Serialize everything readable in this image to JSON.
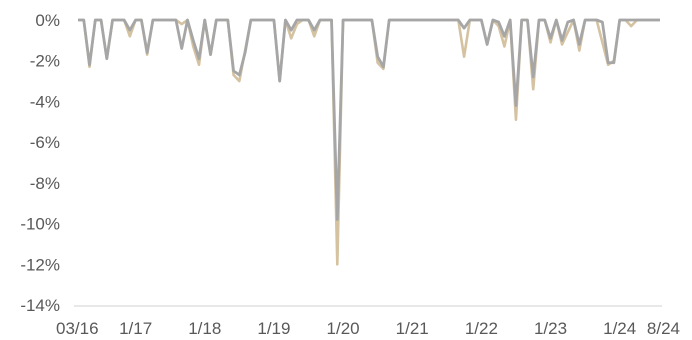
{
  "chart_data": {
    "type": "line",
    "title": "",
    "xlabel": "",
    "ylabel": "",
    "ylim": [
      -14,
      0
    ],
    "y_ticks": [
      0,
      -2,
      -4,
      -6,
      -8,
      -10,
      -12,
      -14
    ],
    "y_tick_labels": [
      "0%",
      "-2%",
      "-4%",
      "-6%",
      "-8%",
      "-10%",
      "-12%",
      "-14%"
    ],
    "x_ticks": [
      "03/16",
      "1/17",
      "1/18",
      "1/19",
      "1/20",
      "1/21",
      "1/22",
      "1/23",
      "1/24",
      "8/24"
    ],
    "grid": false,
    "legend": "none",
    "colors": [
      "#d4c2a0",
      "#a6a6a6"
    ],
    "x": [
      "2016-03",
      "2016-04",
      "2016-05",
      "2016-06",
      "2016-07",
      "2016-08",
      "2016-09",
      "2016-10",
      "2016-11",
      "2016-12",
      "2017-01",
      "2017-02",
      "2017-03",
      "2017-04",
      "2017-05",
      "2017-06",
      "2017-07",
      "2017-08",
      "2017-09",
      "2017-10",
      "2017-11",
      "2017-12",
      "2018-01",
      "2018-02",
      "2018-03",
      "2018-04",
      "2018-05",
      "2018-06",
      "2018-07",
      "2018-08",
      "2018-09",
      "2018-10",
      "2018-11",
      "2018-12",
      "2019-01",
      "2019-02",
      "2019-03",
      "2019-04",
      "2019-05",
      "2019-06",
      "2019-07",
      "2019-08",
      "2019-09",
      "2019-10",
      "2019-11",
      "2019-12",
      "2020-01",
      "2020-02",
      "2020-03",
      "2020-04",
      "2020-05",
      "2020-06",
      "2020-07",
      "2020-08",
      "2020-09",
      "2020-10",
      "2020-11",
      "2020-12",
      "2021-01",
      "2021-02",
      "2021-03",
      "2021-04",
      "2021-05",
      "2021-06",
      "2021-07",
      "2021-08",
      "2021-09",
      "2021-10",
      "2021-11",
      "2021-12",
      "2022-01",
      "2022-02",
      "2022-03",
      "2022-04",
      "2022-05",
      "2022-06",
      "2022-07",
      "2022-08",
      "2022-09",
      "2022-10",
      "2022-11",
      "2022-12",
      "2023-01",
      "2023-02",
      "2023-03",
      "2023-04",
      "2023-05",
      "2023-06",
      "2023-07",
      "2023-08",
      "2023-09",
      "2023-10",
      "2023-11",
      "2023-12",
      "2024-01",
      "2024-02",
      "2024-03",
      "2024-04",
      "2024-05",
      "2024-06",
      "2024-07",
      "2024-08"
    ],
    "series": [
      {
        "values": [
          0,
          0,
          -2.3,
          0,
          0,
          -1.9,
          0,
          0,
          0,
          -0.8,
          0,
          0,
          -1.7,
          0,
          0,
          0,
          0,
          0,
          -0.2,
          0,
          -1.3,
          -2.2,
          0,
          -1.7,
          0,
          0,
          0,
          -2.7,
          -3.0,
          -1.5,
          0,
          0,
          0,
          0,
          0,
          -3.0,
          0,
          -0.9,
          -0.2,
          0,
          0,
          -0.8,
          0,
          0,
          0,
          -12.0,
          0,
          0,
          0,
          0,
          0,
          0,
          -2.1,
          -2.4,
          0,
          0,
          0,
          0,
          0,
          0,
          0,
          0,
          0,
          0,
          0,
          0,
          0,
          -1.8,
          0,
          0,
          0,
          -1.2,
          0,
          -0.3,
          -1.3,
          0,
          -4.9,
          0,
          0,
          -3.4,
          0,
          0,
          -1.1,
          0,
          -1.2,
          -0.6,
          0,
          -1.5,
          0,
          0,
          0,
          -1.1,
          -2.2,
          -2.0,
          0,
          0,
          -0.3,
          0,
          0,
          0,
          0,
          0
        ]
      },
      {
        "values": [
          0,
          0,
          -2.2,
          0,
          0,
          -1.9,
          0,
          0,
          0,
          -0.5,
          0,
          0,
          -1.6,
          0,
          0,
          0,
          0,
          0,
          -1.4,
          0,
          -1.0,
          -1.9,
          0,
          -1.7,
          0,
          0,
          0,
          -2.5,
          -2.7,
          -1.6,
          0,
          0,
          0,
          0,
          0,
          -3.0,
          0,
          -0.5,
          0,
          0,
          0,
          -0.5,
          0,
          0,
          0,
          -9.8,
          0,
          0,
          0,
          0,
          0,
          0,
          -1.8,
          -2.3,
          0,
          0,
          0,
          0,
          0,
          0,
          0,
          0,
          0,
          0,
          0,
          0,
          0,
          -0.4,
          0,
          0,
          0,
          -1.2,
          0,
          -0.1,
          -0.8,
          0,
          -4.2,
          0,
          0,
          -2.8,
          0,
          0,
          -0.9,
          0,
          -1.0,
          -0.1,
          0,
          -1.2,
          0,
          0,
          0,
          -0.1,
          -2.1,
          -2.1,
          0,
          0,
          0,
          0,
          0,
          0,
          0,
          0
        ]
      }
    ]
  }
}
